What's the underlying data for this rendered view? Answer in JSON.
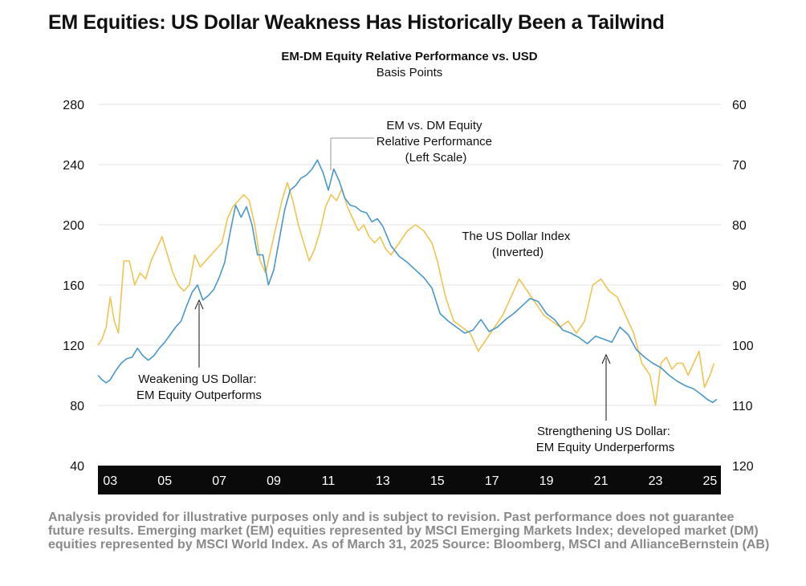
{
  "title": "EM Equities: US Dollar Weakness Has Historically Been a Tailwind",
  "footnote": "Analysis provided for illustrative purposes only and is subject to revision. Past performance does not guarantee future results. Emerging market (EM) equities represented by MSCI Emerging Markets Index; developed market (DM) equities represented by MSCI World Index. As of March 31, 2025 Source: Bloomberg, MSCI and AllianceBernstein (AB)",
  "chart_data": {
    "type": "line",
    "title": "EM-DM Equity Relative Performance vs. USD",
    "subtitle": "Basis Points",
    "colors": {
      "em_dm": "#4a97c9",
      "usd": "#f0c451",
      "axis_bar": "#0a0a0a",
      "grid": "#e3e3e3"
    },
    "x_range": [
      2002.55,
      2025.4
    ],
    "x_ticks": [
      {
        "value": 2003,
        "label": "03"
      },
      {
        "value": 2005,
        "label": "05"
      },
      {
        "value": 2007,
        "label": "07"
      },
      {
        "value": 2009,
        "label": "09"
      },
      {
        "value": 2011,
        "label": "11"
      },
      {
        "value": 2013,
        "label": "13"
      },
      {
        "value": 2015,
        "label": "15"
      },
      {
        "value": 2017,
        "label": "17"
      },
      {
        "value": 2019,
        "label": "19"
      },
      {
        "value": 2021,
        "label": "21"
      },
      {
        "value": 2023,
        "label": "23"
      },
      {
        "value": 2025,
        "label": "25"
      }
    ],
    "y_left": {
      "min": 40,
      "max": 280,
      "ticks": [
        280,
        240,
        200,
        160,
        120,
        80,
        40
      ]
    },
    "y_right": {
      "min": 60,
      "max": 120,
      "inverted": true,
      "ticks": [
        60,
        70,
        80,
        90,
        100,
        110,
        120
      ]
    },
    "series": [
      {
        "name": "EM vs. DM Equity Relative Performance (Left Scale)",
        "axis": "left",
        "x": [
          2002.55,
          2002.7,
          2002.85,
          2003.0,
          2003.2,
          2003.4,
          2003.6,
          2003.8,
          2004.0,
          2004.2,
          2004.4,
          2004.6,
          2004.8,
          2005.0,
          2005.2,
          2005.4,
          2005.6,
          2005.8,
          2006.0,
          2006.2,
          2006.4,
          2006.6,
          2006.8,
          2007.0,
          2007.2,
          2007.4,
          2007.6,
          2007.8,
          2008.0,
          2008.2,
          2008.4,
          2008.6,
          2008.8,
          2009.0,
          2009.2,
          2009.4,
          2009.6,
          2009.8,
          2010.0,
          2010.2,
          2010.4,
          2010.6,
          2010.8,
          2011.0,
          2011.2,
          2011.4,
          2011.6,
          2011.8,
          2012.0,
          2012.2,
          2012.4,
          2012.6,
          2012.8,
          2013.0,
          2013.3,
          2013.6,
          2013.9,
          2014.2,
          2014.5,
          2014.8,
          2015.1,
          2015.4,
          2015.7,
          2016.0,
          2016.3,
          2016.6,
          2016.9,
          2017.2,
          2017.5,
          2017.8,
          2018.1,
          2018.4,
          2018.7,
          2019.0,
          2019.3,
          2019.6,
          2019.9,
          2020.2,
          2020.5,
          2020.8,
          2021.1,
          2021.4,
          2021.7,
          2022.0,
          2022.3,
          2022.6,
          2022.9,
          2023.2,
          2023.5,
          2023.8,
          2024.1,
          2024.4,
          2024.7,
          2024.9,
          2025.1,
          2025.25
        ],
        "y": [
          100,
          97,
          95,
          97,
          103,
          108,
          111,
          112,
          118,
          113,
          110,
          113,
          118,
          122,
          127,
          132,
          136,
          146,
          155,
          160,
          150,
          153,
          157,
          165,
          175,
          195,
          213,
          205,
          212,
          200,
          180,
          180,
          160,
          170,
          190,
          210,
          223,
          226,
          231,
          233,
          237,
          243,
          235,
          223,
          237,
          229,
          218,
          213,
          212,
          209,
          208,
          202,
          204,
          199,
          186,
          179,
          175,
          170,
          165,
          158,
          141,
          136,
          132,
          128,
          130,
          137,
          129,
          132,
          137,
          141,
          146,
          151,
          149,
          141,
          137,
          130,
          128,
          125,
          121,
          126,
          124,
          122,
          132,
          127,
          117,
          112,
          108,
          105,
          100,
          96,
          93,
          91,
          87,
          84,
          82,
          84
        ]
      },
      {
        "name": "The US Dollar Index (Inverted)",
        "axis": "right",
        "x": [
          2002.55,
          2002.7,
          2002.85,
          2003.0,
          2003.15,
          2003.3,
          2003.5,
          2003.7,
          2003.9,
          2004.1,
          2004.3,
          2004.5,
          2004.7,
          2004.9,
          2005.1,
          2005.3,
          2005.5,
          2005.7,
          2005.9,
          2006.1,
          2006.3,
          2006.5,
          2006.7,
          2006.9,
          2007.1,
          2007.3,
          2007.5,
          2007.7,
          2007.9,
          2008.1,
          2008.3,
          2008.5,
          2008.7,
          2008.9,
          2009.1,
          2009.3,
          2009.5,
          2009.7,
          2009.9,
          2010.1,
          2010.3,
          2010.5,
          2010.7,
          2010.9,
          2011.1,
          2011.3,
          2011.5,
          2011.7,
          2011.9,
          2012.1,
          2012.3,
          2012.5,
          2012.7,
          2012.9,
          2013.1,
          2013.3,
          2013.6,
          2013.9,
          2014.2,
          2014.5,
          2014.8,
          2015.0,
          2015.3,
          2015.6,
          2015.9,
          2016.2,
          2016.5,
          2016.8,
          2017.1,
          2017.4,
          2017.7,
          2018.0,
          2018.3,
          2018.6,
          2018.9,
          2019.2,
          2019.5,
          2019.8,
          2020.1,
          2020.4,
          2020.7,
          2021.0,
          2021.3,
          2021.6,
          2021.9,
          2022.2,
          2022.5,
          2022.8,
          2023.0,
          2023.2,
          2023.4,
          2023.6,
          2023.8,
          2024.0,
          2024.2,
          2024.4,
          2024.6,
          2024.8,
          2025.0,
          2025.15
        ],
        "y": [
          100,
          99,
          97,
          92,
          96,
          98,
          86,
          86,
          90,
          88,
          89,
          86,
          84,
          82,
          85,
          88,
          90,
          91,
          90,
          85,
          87,
          86,
          85,
          84,
          83,
          79,
          77,
          76,
          75,
          76,
          80,
          86,
          88,
          84,
          80,
          76,
          73,
          76,
          80,
          83,
          86,
          84,
          81,
          77,
          75,
          76,
          74,
          77,
          79,
          81,
          80,
          82,
          83,
          82,
          84,
          85,
          83,
          81,
          80,
          81,
          83,
          86,
          92,
          96,
          97,
          98,
          101,
          99,
          97,
          95,
          92,
          89,
          91,
          93,
          95,
          96,
          97,
          96,
          98,
          96,
          90,
          89,
          91,
          92,
          95,
          98,
          103,
          105,
          110,
          103,
          102,
          104,
          103,
          103,
          105,
          103,
          101,
          107,
          105,
          103
        ]
      }
    ],
    "annotations": [
      {
        "name": "em-dm-label",
        "lines": [
          "EM vs. DM Equity",
          "Relative Performance",
          "(Left Scale)"
        ]
      },
      {
        "name": "usd-label",
        "lines": [
          "The US Dollar Index",
          "(Inverted)"
        ]
      },
      {
        "name": "weakening-label",
        "lines": [
          "Weakening US Dollar:",
          "EM Equity Outperforms"
        ]
      },
      {
        "name": "strengthening-label",
        "lines": [
          "Strengthening US Dollar:",
          "EM Equity Underperforms"
        ]
      }
    ]
  }
}
